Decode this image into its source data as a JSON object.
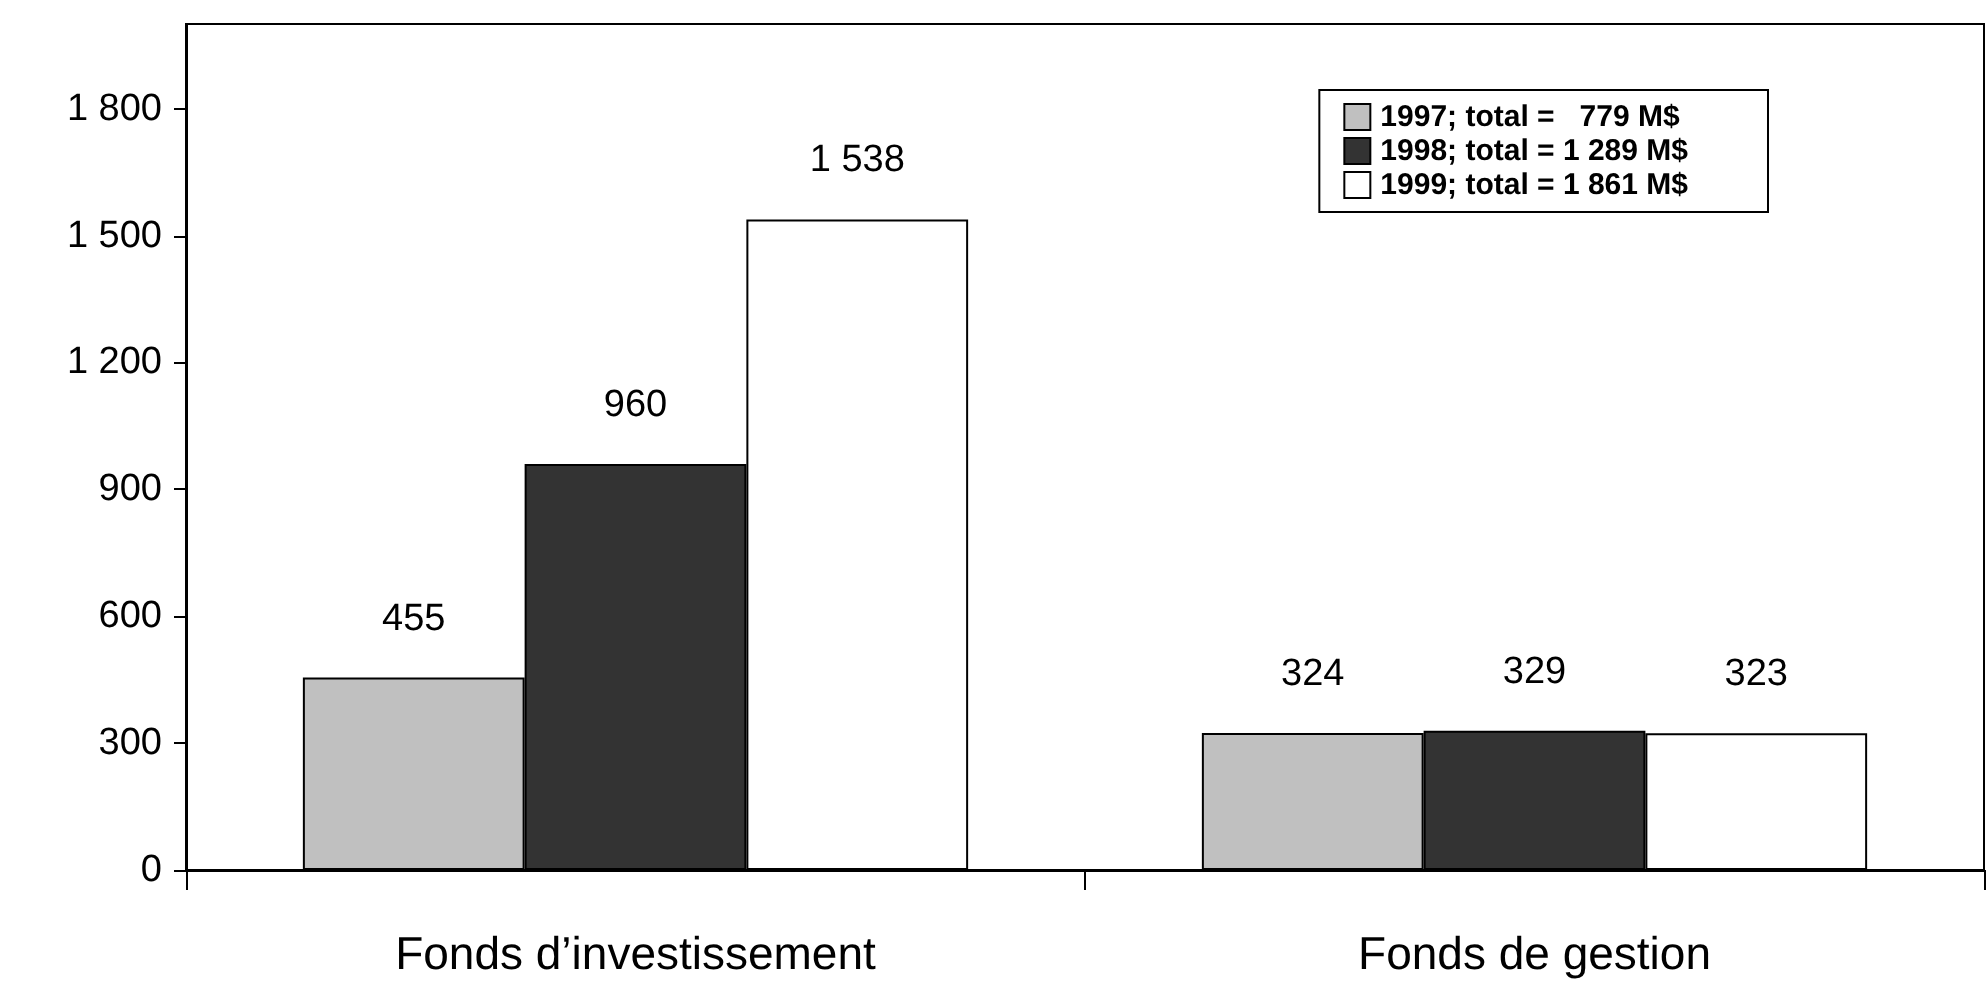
{
  "chart_data": {
    "type": "bar",
    "categories": [
      "Fonds d’investissement",
      "Fonds de gestion"
    ],
    "series": [
      {
        "name": "1997; total =   779 M$",
        "color": "#c0c0c0",
        "values": [
          455,
          324
        ],
        "value_labels": [
          "455",
          "324"
        ]
      },
      {
        "name": "1998; total = 1 289 M$",
        "color": "#333333",
        "values": [
          960,
          329
        ],
        "value_labels": [
          "960",
          "329"
        ]
      },
      {
        "name": "1999; total = 1 861 M$",
        "color": "#ffffff",
        "values": [
          1538,
          323
        ],
        "value_labels": [
          "1 538",
          "323"
        ]
      }
    ],
    "ylim": [
      0,
      2000
    ],
    "yticks": [
      0,
      300,
      600,
      900,
      {
        "value": 1200,
        "label": "1 200"
      },
      {
        "value": 1500,
        "label": "1 500"
      },
      {
        "value": 1800,
        "label": "1 800"
      }
    ],
    "grid": false,
    "legend": "top right"
  }
}
